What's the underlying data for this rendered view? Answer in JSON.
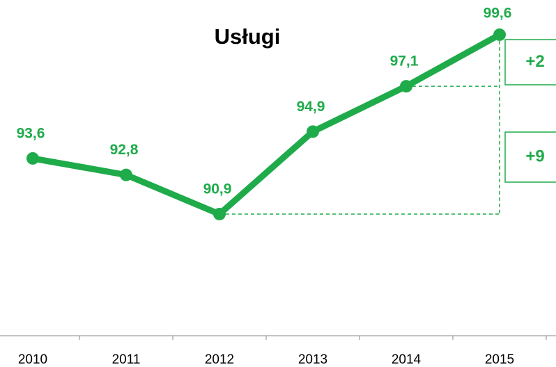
{
  "chart_data": {
    "type": "line",
    "title": "Usługi",
    "categories": [
      "2010",
      "2011",
      "2012",
      "2013",
      "2014",
      "2015"
    ],
    "series": [
      {
        "name": "Usługi",
        "color": "#1fab4a",
        "values": [
          93.6,
          92.8,
          90.9,
          94.9,
          97.1,
          99.6
        ],
        "value_labels": [
          "93,6",
          "92,8",
          "90,9",
          "94,9",
          "97,1",
          "99,6"
        ]
      }
    ],
    "ylim": [
      85,
      101
    ],
    "annotations": [
      "+2",
      "+9"
    ]
  }
}
